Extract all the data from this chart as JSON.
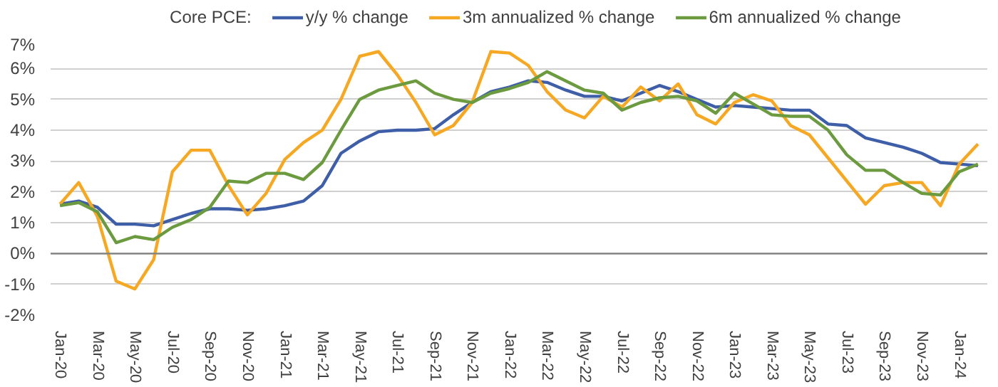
{
  "chart_data": {
    "type": "line",
    "legend_title": "Core PCE:",
    "categories": [
      "Jan-20",
      null,
      "Mar-20",
      null,
      "May-20",
      null,
      "Jul-20",
      null,
      "Sep-20",
      null,
      "Nov-20",
      null,
      "Jan-21",
      null,
      "Mar-21",
      null,
      "May-21",
      null,
      "Jul-21",
      null,
      "Sep-21",
      null,
      "Nov-21",
      null,
      "Jan-22",
      null,
      "Mar-22",
      null,
      "May-22",
      null,
      "Jul-22",
      null,
      "Sep-22",
      null,
      "Nov-22",
      null,
      "Jan-23",
      null,
      "Mar-23",
      null,
      "May-23",
      null,
      "Jul-23",
      null,
      "Sep-23",
      null,
      "Nov-23",
      null,
      "Jan-24",
      null
    ],
    "series": [
      {
        "name": "y/y % change",
        "color": "#3e5fa8",
        "values": [
          1.6,
          1.7,
          1.5,
          0.95,
          0.95,
          0.9,
          1.1,
          1.3,
          1.45,
          1.45,
          1.4,
          1.45,
          1.55,
          1.7,
          2.2,
          3.25,
          3.65,
          3.95,
          4.0,
          4.0,
          4.05,
          4.5,
          4.9,
          5.25,
          5.4,
          5.6,
          5.55,
          5.3,
          5.1,
          5.1,
          4.95,
          5.2,
          5.45,
          5.25,
          5.0,
          4.75,
          4.8,
          4.75,
          4.7,
          4.65,
          4.65,
          4.2,
          4.15,
          3.75,
          3.6,
          3.45,
          3.25,
          2.95,
          2.9,
          2.85
        ]
      },
      {
        "name": "3m annualized % change",
        "color": "#f7a823",
        "values": [
          1.6,
          2.3,
          1.2,
          -0.9,
          -1.15,
          -0.2,
          2.65,
          3.35,
          3.35,
          2.2,
          1.25,
          1.95,
          3.05,
          3.6,
          4.0,
          5.0,
          6.4,
          6.55,
          5.8,
          4.9,
          3.85,
          4.15,
          4.9,
          6.55,
          6.5,
          6.1,
          5.25,
          4.65,
          4.4,
          5.1,
          4.75,
          5.4,
          4.95,
          5.5,
          4.5,
          4.2,
          4.9,
          5.15,
          4.95,
          4.15,
          3.85,
          3.1,
          2.35,
          1.6,
          2.2,
          2.3,
          2.3,
          1.55,
          2.9,
          3.55
        ]
      },
      {
        "name": "6m annualized % change",
        "color": "#6b9a3f",
        "values": [
          1.55,
          1.65,
          1.35,
          0.35,
          0.55,
          0.45,
          0.85,
          1.1,
          1.5,
          2.35,
          2.3,
          2.6,
          2.6,
          2.4,
          2.95,
          4.0,
          5.0,
          5.3,
          5.45,
          5.6,
          5.2,
          5.0,
          4.9,
          5.2,
          5.35,
          5.55,
          5.9,
          5.6,
          5.3,
          5.2,
          4.65,
          4.9,
          5.05,
          5.1,
          4.95,
          4.55,
          5.2,
          4.85,
          4.5,
          4.45,
          4.45,
          4.0,
          3.2,
          2.7,
          2.7,
          2.3,
          1.95,
          1.9,
          2.65,
          2.9
        ]
      }
    ],
    "ylim": [
      -2,
      7
    ],
    "yticks": [
      {
        "value": -2,
        "label": "-2%"
      },
      {
        "value": -1,
        "label": "-1%"
      },
      {
        "value": 0,
        "label": "0%"
      },
      {
        "value": 1,
        "label": "1%"
      },
      {
        "value": 2,
        "label": "2%"
      },
      {
        "value": 3,
        "label": "3%"
      },
      {
        "value": 4,
        "label": "4%"
      },
      {
        "value": 5,
        "label": "5%"
      },
      {
        "value": 6,
        "label": "6%"
      },
      {
        "value": 7,
        "label": "7%"
      }
    ],
    "grid": "y",
    "legend": "top",
    "marker": "none",
    "line_style": "solid",
    "ref_lines": [
      {
        "axis": "y",
        "value": 0,
        "color": "#808080"
      }
    ]
  }
}
